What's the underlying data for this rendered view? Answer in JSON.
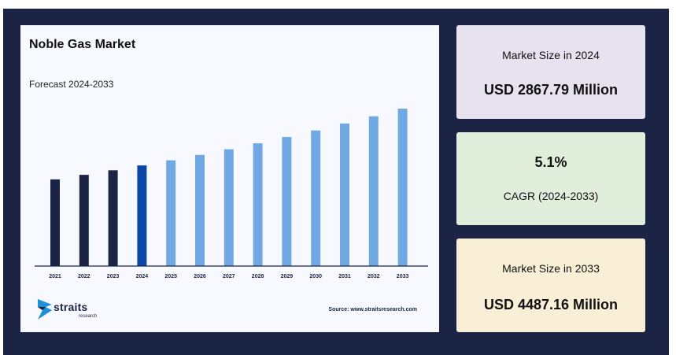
{
  "chart_card": {
    "title": "Noble Gas Market",
    "subtitle": "Forecast 2024-2033",
    "source": "Source: www.straitsresearch.com",
    "logo_name": "straits",
    "logo_sub": "research"
  },
  "stats": [
    {
      "label": "Market Size in 2024",
      "value": "USD 2867.79 Million"
    },
    {
      "label": "CAGR (2024-2033)",
      "value": "5.1%"
    },
    {
      "label": "Market Size in 2033",
      "value": "USD 4487.16 Million"
    }
  ],
  "colors": {
    "background": "#1b2444",
    "historical_bar": "#1b2444",
    "base_year_bar": "#0a47a8",
    "forecast_bar": "#6fa8e3"
  },
  "chart_data": {
    "type": "bar",
    "title": "Noble Gas Market",
    "subtitle": "Forecast 2024-2033",
    "categories": [
      "2021",
      "2022",
      "2023",
      "2024",
      "2025",
      "2026",
      "2027",
      "2028",
      "2029",
      "2030",
      "2031",
      "2032",
      "2033"
    ],
    "values": [
      2470,
      2600,
      2730,
      2867.79,
      3014,
      3168,
      3329,
      3499,
      3678,
      3865,
      4062,
      4269,
      4487.16
    ],
    "bar_groups": [
      "historical",
      "historical",
      "historical",
      "base",
      "forecast",
      "forecast",
      "forecast",
      "forecast",
      "forecast",
      "forecast",
      "forecast",
      "forecast",
      "forecast"
    ],
    "xlabel": "",
    "ylabel": "",
    "grid": false
  }
}
